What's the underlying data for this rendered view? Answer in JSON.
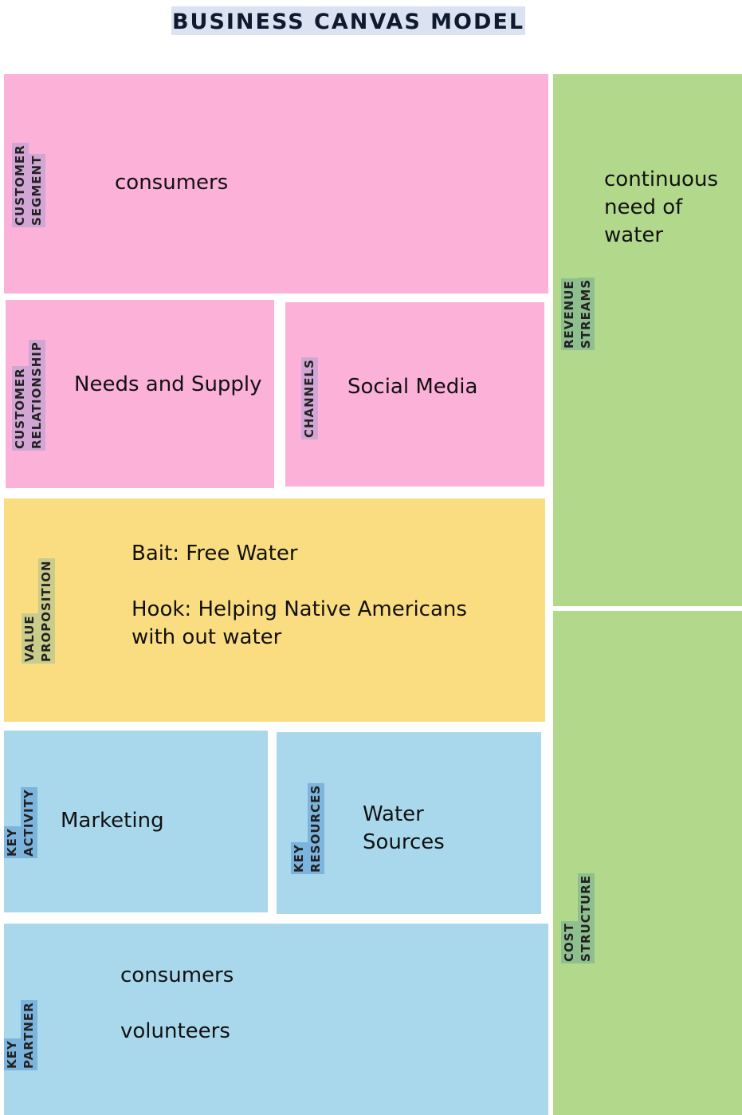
{
  "title": "BUSINESS CANVAS MODEL",
  "customer_segment": {
    "label_line1": "CUSTOMER",
    "label_line2": "SEGMENT",
    "text": "consumers"
  },
  "customer_relationship": {
    "label_line1": "CUSTOMER",
    "label_line2": "RELATIONSHIP",
    "text": "Needs and Supply"
  },
  "channels": {
    "label_line1": "CHANNELS",
    "text": "Social Media"
  },
  "revenue_streams": {
    "label_line1": "REVENUE",
    "label_line2": "STREAMS",
    "text_line1": "continuous",
    "text_line2": "need of",
    "text_line3": "water"
  },
  "value_proposition": {
    "label_line1": "VALUE",
    "label_line2": "PROPOSITION",
    "text_line1": "Bait: Free Water",
    "text_line2": "Hook: Helping Native Americans",
    "text_line3": "with out water"
  },
  "key_activity": {
    "label_line1": "KEY",
    "label_line2": "ACTIVITY",
    "text": "Marketing"
  },
  "key_resources": {
    "label_line1": "KEY",
    "label_line2": "RESOURCES",
    "text_line1": "Water",
    "text_line2": "Sources"
  },
  "key_partner": {
    "label_line1": "KEY",
    "label_line2": "PARTNER",
    "text_line1": "consumers",
    "text_line2": "volunteers"
  },
  "cost_structure": {
    "label_line1": "COST",
    "label_line2": "STRUCTURE"
  },
  "colors": {
    "pink": "#fcb1d9",
    "green": "#b2d88c",
    "yellow": "#fbdd81",
    "blue": "#a9d8ec"
  }
}
